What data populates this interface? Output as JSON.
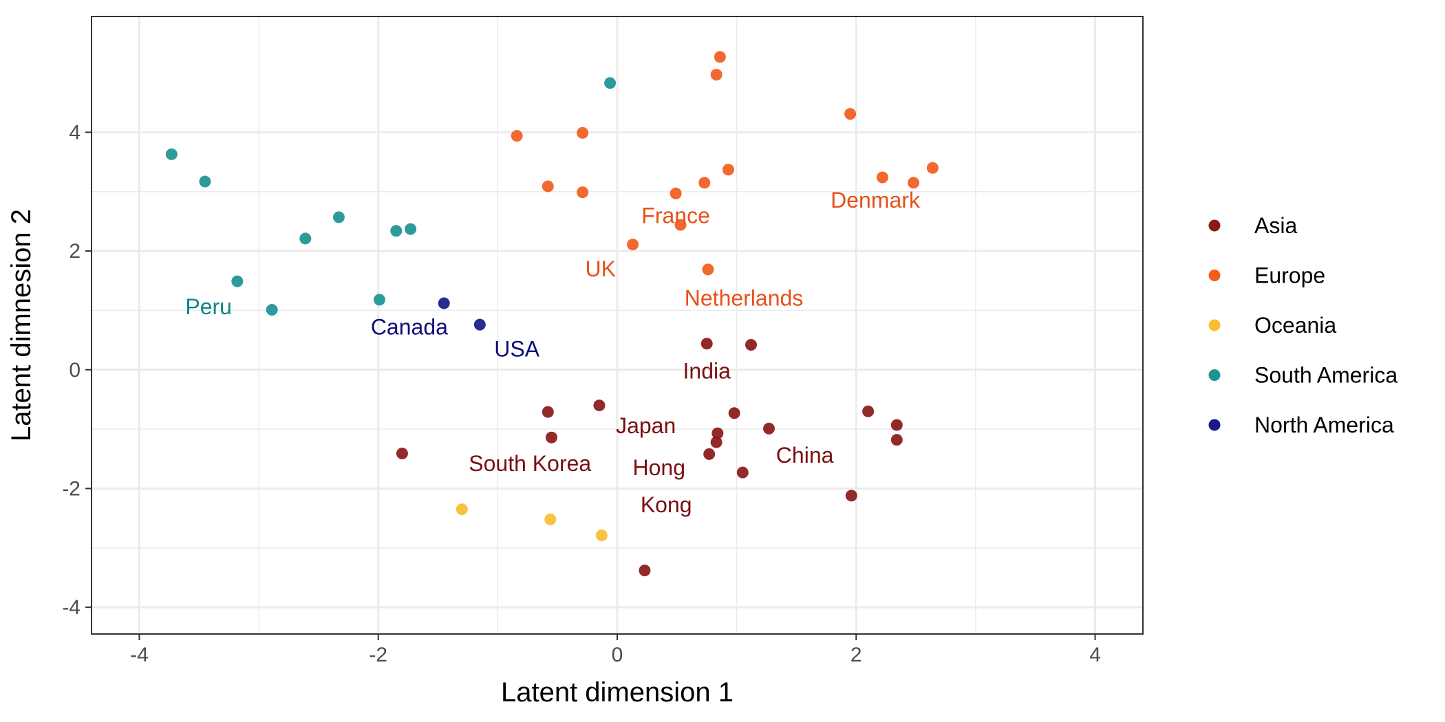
{
  "chart_data": {
    "type": "scatter",
    "title": "",
    "xlabel": "Latent dimension 1",
    "ylabel": "Latent dimnesion 2",
    "xlim": [
      -4.4,
      4.4
    ],
    "ylim": [
      -4.45,
      5.95
    ],
    "xticks": [
      -4,
      -2,
      0,
      2,
      4
    ],
    "yticks": [
      -4,
      -2,
      0,
      2,
      4
    ],
    "grid": true,
    "legend_position": "right",
    "series": [
      {
        "name": "Asia",
        "color": "#8B1A1A",
        "points": [
          {
            "x": 0.75,
            "y": 0.44
          },
          {
            "x": 1.12,
            "y": 0.42
          },
          {
            "x": -0.58,
            "y": -0.71
          },
          {
            "x": -0.15,
            "y": -0.6
          },
          {
            "x": -0.55,
            "y": -1.14
          },
          {
            "x": -1.8,
            "y": -1.41
          },
          {
            "x": 0.98,
            "y": -0.73
          },
          {
            "x": 0.84,
            "y": -1.07
          },
          {
            "x": 0.83,
            "y": -1.22
          },
          {
            "x": 0.77,
            "y": -1.42
          },
          {
            "x": 1.27,
            "y": -0.99
          },
          {
            "x": 1.05,
            "y": -1.73
          },
          {
            "x": 2.1,
            "y": -0.7
          },
          {
            "x": 2.34,
            "y": -0.93
          },
          {
            "x": 2.34,
            "y": -1.18
          },
          {
            "x": 1.96,
            "y": -2.12
          },
          {
            "x": 0.23,
            "y": -3.38
          }
        ]
      },
      {
        "name": "Europe",
        "color": "#F25C1E",
        "points": [
          {
            "x": 0.86,
            "y": 5.27
          },
          {
            "x": 0.83,
            "y": 4.97
          },
          {
            "x": -0.84,
            "y": 3.94
          },
          {
            "x": -0.29,
            "y": 3.99
          },
          {
            "x": 1.95,
            "y": 4.31
          },
          {
            "x": -0.58,
            "y": 3.09
          },
          {
            "x": -0.29,
            "y": 2.99
          },
          {
            "x": 0.49,
            "y": 2.97
          },
          {
            "x": 0.73,
            "y": 3.15
          },
          {
            "x": 0.93,
            "y": 3.37
          },
          {
            "x": 2.22,
            "y": 3.24
          },
          {
            "x": 2.48,
            "y": 3.15
          },
          {
            "x": 2.64,
            "y": 3.4
          },
          {
            "x": 0.53,
            "y": 2.44
          },
          {
            "x": 0.13,
            "y": 2.11
          },
          {
            "x": 0.76,
            "y": 1.69
          }
        ]
      },
      {
        "name": "Oceania",
        "color": "#F9BE2E",
        "points": [
          {
            "x": -1.3,
            "y": -2.35
          },
          {
            "x": -0.56,
            "y": -2.52
          },
          {
            "x": -0.13,
            "y": -2.79
          }
        ]
      },
      {
        "name": "South America",
        "color": "#1E9393",
        "points": [
          {
            "x": -3.73,
            "y": 3.63
          },
          {
            "x": -3.45,
            "y": 3.17
          },
          {
            "x": -2.33,
            "y": 2.57
          },
          {
            "x": -2.61,
            "y": 2.21
          },
          {
            "x": -1.85,
            "y": 2.34
          },
          {
            "x": -1.73,
            "y": 2.37
          },
          {
            "x": -3.18,
            "y": 1.49
          },
          {
            "x": -2.89,
            "y": 1.01
          },
          {
            "x": -1.99,
            "y": 1.18
          },
          {
            "x": -0.06,
            "y": 4.83
          }
        ]
      },
      {
        "name": "North America",
        "color": "#1A1A8B",
        "points": [
          {
            "x": -1.45,
            "y": 1.12
          },
          {
            "x": -1.15,
            "y": 0.76
          }
        ]
      }
    ],
    "annotations": [
      {
        "text": "France",
        "x": 0.49,
        "y": 2.6,
        "series": "Europe"
      },
      {
        "text": "Denmark",
        "x": 2.16,
        "y": 2.86,
        "series": "Europe"
      },
      {
        "text": "UK",
        "x": -0.14,
        "y": 1.7,
        "series": "Europe"
      },
      {
        "text": "Netherlands",
        "x": 1.06,
        "y": 1.21,
        "series": "Europe"
      },
      {
        "text": "Peru",
        "x": -3.42,
        "y": 1.06,
        "series": "South America"
      },
      {
        "text": "Canada",
        "x": -1.74,
        "y": 0.72,
        "series": "North America"
      },
      {
        "text": "USA",
        "x": -0.84,
        "y": 0.35,
        "series": "North America"
      },
      {
        "text": "India",
        "x": 0.75,
        "y": -0.02,
        "series": "Asia"
      },
      {
        "text": "Japan",
        "x": 0.24,
        "y": -0.94,
        "series": "Asia"
      },
      {
        "text": "China",
        "x": 1.57,
        "y": -1.44,
        "series": "Asia"
      },
      {
        "text": "South Korea",
        "x": -0.73,
        "y": -1.58,
        "series": "Asia"
      },
      {
        "text": "Hong",
        "x": 0.35,
        "y": -1.65,
        "series": "Asia"
      },
      {
        "text": "Kong",
        "x": 0.41,
        "y": -2.27,
        "series": "Asia"
      }
    ]
  }
}
